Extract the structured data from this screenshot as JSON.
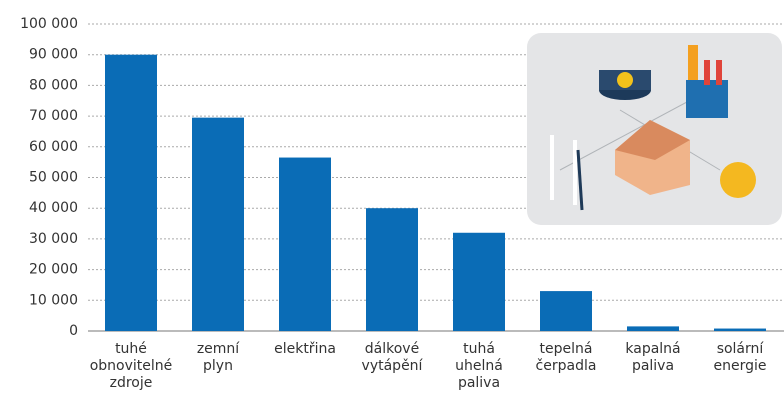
{
  "chart_data": {
    "type": "bar",
    "categories": [
      "tuhé\nobnovitelné\nzdroje",
      "zemní\nplyn",
      "elektřina",
      "dálkové\nvytápění",
      "tuhá\nuhelná\npaliva",
      "tepelná\nčerpadla",
      "kapalná\npaliva",
      "solární\nenergie"
    ],
    "values": [
      90000,
      69500,
      56500,
      40000,
      32000,
      13000,
      1500,
      800
    ],
    "color": "#0a6cb6",
    "ylim": [
      0,
      100000
    ],
    "yticks": [
      0,
      {
        "value": 10000,
        "label": "10 000"
      },
      {
        "value": 20000,
        "label": "20 000"
      },
      {
        "value": 30000,
        "label": "30 000"
      },
      {
        "value": 40000,
        "label": "40 000"
      },
      {
        "value": 50000,
        "label": "50 000"
      },
      {
        "value": 60000,
        "label": "60 000"
      },
      {
        "value": 70000,
        "label": "70 000"
      },
      {
        "value": 80000,
        "label": "80 000"
      },
      {
        "value": 90000,
        "label": "90 000"
      },
      {
        "value": 100000,
        "label": "100 000"
      }
    ],
    "grid": true
  }
}
